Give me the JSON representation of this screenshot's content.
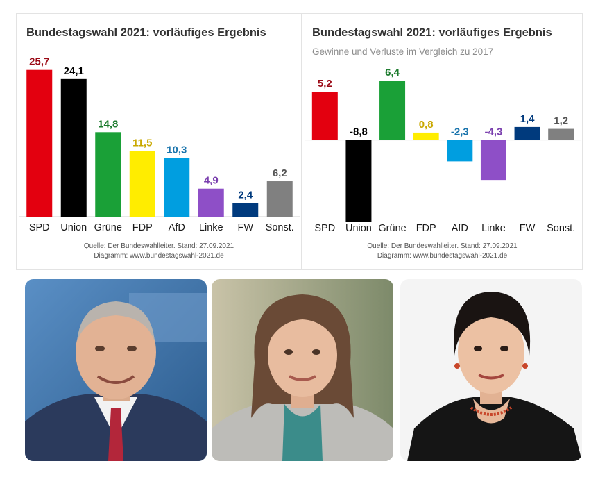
{
  "chart_data": [
    {
      "type": "bar",
      "title": "Bundestagswahl 2021: vorläufiges Ergebnis",
      "categories": [
        "SPD",
        "Union",
        "Grüne",
        "FDP",
        "AfD",
        "Linke",
        "FW",
        "Sonst."
      ],
      "values": [
        25.7,
        24.1,
        14.8,
        11.5,
        10.3,
        4.9,
        2.4,
        6.2
      ],
      "value_labels": [
        "25,7",
        "24,1",
        "14,8",
        "11,5",
        "10,3",
        "4,9",
        "2,4",
        "6,2"
      ],
      "colors": [
        "#e3000f",
        "#000000",
        "#1aa037",
        "#ffed00",
        "#009ee0",
        "#8e4fc7",
        "#003a7d",
        "#808080"
      ],
      "label_colors": [
        "#9b0a16",
        "#000000",
        "#1a7a2c",
        "#c9a800",
        "#1b75ad",
        "#7a3fae",
        "#003a7d",
        "#555555"
      ],
      "ylim": [
        0,
        27
      ],
      "source": [
        "Quelle: Der Bundeswahlleiter. Stand: 27.09.2021",
        "Diagramm: www.bundestagswahl-2021.de"
      ]
    },
    {
      "type": "bar",
      "title": "Bundestagswahl 2021: vorläufiges Ergebnis",
      "subtitle": "Gewinne und Verluste im Vergleich zu 2017",
      "categories": [
        "SPD",
        "Union",
        "Grüne",
        "FDP",
        "AfD",
        "Linke",
        "FW",
        "Sonst."
      ],
      "values": [
        5.2,
        -8.8,
        6.4,
        0.8,
        -2.3,
        -4.3,
        1.4,
        1.2
      ],
      "value_labels": [
        "5,2",
        "-8,8",
        "6,4",
        "0,8",
        "-2,3",
        "-4,3",
        "1,4",
        "1,2"
      ],
      "colors": [
        "#e3000f",
        "#000000",
        "#1aa037",
        "#ffed00",
        "#009ee0",
        "#8e4fc7",
        "#003a7d",
        "#808080"
      ],
      "label_colors": [
        "#9b0a16",
        "#000000",
        "#1a7a2c",
        "#c9a800",
        "#1b75ad",
        "#7a3fae",
        "#003a7d",
        "#555555"
      ],
      "ylim": [
        -9,
        7
      ],
      "source": [
        "Quelle: Der Bundeswahlleiter. Stand: 27.09.2021",
        "Diagramm: www.bundestagswahl-2021.de"
      ]
    }
  ],
  "photos": [
    {
      "icon": "portrait-man-suit-red-tie",
      "bg": "#3b6ea5"
    },
    {
      "icon": "portrait-woman-brown-hair",
      "bg": "#9aa085"
    },
    {
      "icon": "portrait-woman-dark-hair",
      "bg": "#f2f2f2"
    }
  ]
}
